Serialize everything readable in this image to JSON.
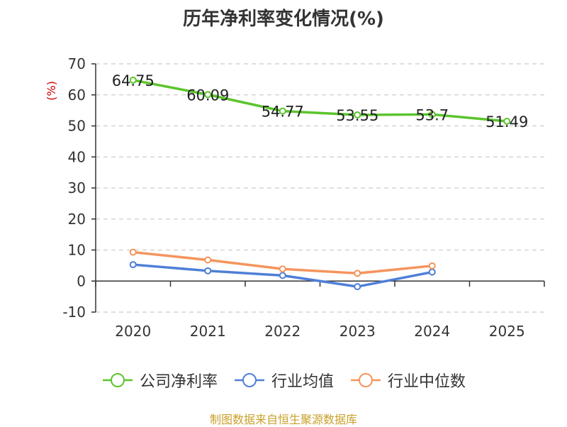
{
  "chart_data": {
    "type": "line",
    "title": "历年净利率变化情况(%)",
    "ylabel": "(%)",
    "xlabel": "",
    "categories": [
      "2020",
      "2021",
      "2022",
      "2023",
      "2024",
      "2025"
    ],
    "ylim": [
      -10,
      70
    ],
    "yticks": [
      "-10",
      "0",
      "10",
      "20",
      "30",
      "40",
      "50",
      "60",
      "70"
    ],
    "grid": true,
    "legend_position": "bottom",
    "series": [
      {
        "name": "公司净利率",
        "color": "#5cc42c",
        "values": [
          64.75,
          60.09,
          54.77,
          53.55,
          53.7,
          51.49
        ],
        "labels": [
          "64.75",
          "60.09",
          "54.77",
          "53.55",
          "53.7",
          "51.49"
        ]
      },
      {
        "name": "行业均值",
        "color": "#4e7fd8",
        "values": [
          5.3,
          3.3,
          1.8,
          -1.8,
          2.9,
          null
        ]
      },
      {
        "name": "行业中位数",
        "color": "#f5945c",
        "values": [
          9.3,
          6.8,
          3.9,
          2.5,
          4.9,
          null
        ]
      }
    ]
  },
  "footer": {
    "source": "制图数据来自恒生聚源数据库"
  }
}
